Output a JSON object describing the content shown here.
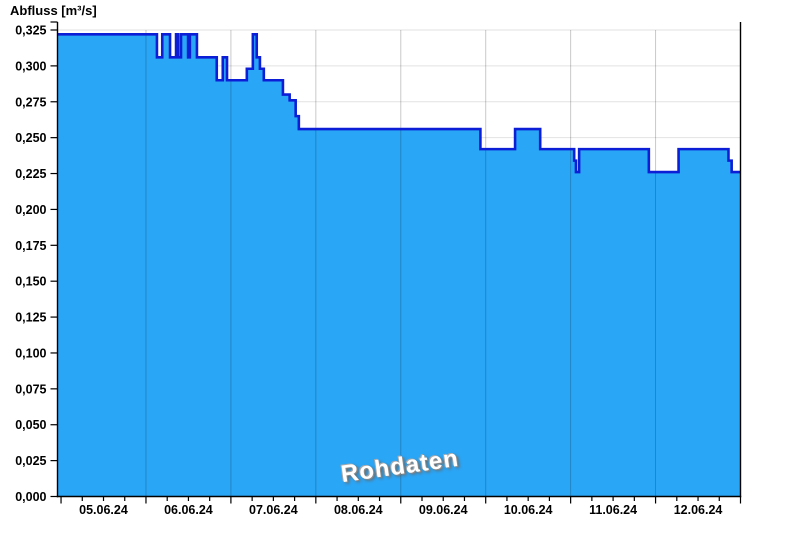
{
  "title": "Abfluss [m³/s]",
  "watermark": "Rohdaten",
  "colors": {
    "background": "#ffffff",
    "fill": "#2aa6f7",
    "line": "#0d1fd6",
    "grid": "#e2e2e2",
    "day_grid": "#c9c9c9",
    "axis": "#000000",
    "label": "#000000",
    "watermark_text": "#ffffff",
    "watermark_shadow": "#6e6e6e"
  },
  "chart_data": {
    "type": "area",
    "subtype": "step",
    "title": "Abfluss [m³/s]",
    "ylabel": "Abfluss [m³/s]",
    "xlabel": "",
    "series_label": "Rohdaten",
    "legend": "none",
    "grid": "horizontal light grey behind fill, vertical day-boundary lines over fill",
    "ylim": [
      0,
      0.325
    ],
    "ytick_step": 0.025,
    "y_tick_labels": [
      "0,000",
      "0,025",
      "0,050",
      "0,075",
      "0,100",
      "0,125",
      "0,150",
      "0,175",
      "0,200",
      "0,225",
      "0,250",
      "0,275",
      "0,300",
      "0,325"
    ],
    "x_tick_labels": [
      "05.06.24",
      "06.06.24",
      "07.06.24",
      "08.06.24",
      "09.06.24",
      "10.06.24",
      "11.06.24",
      "12.06.24"
    ],
    "x_unit": "hours since 05.06.24 00:00",
    "xlim": [
      -1,
      192
    ],
    "x_major_tick_hours": 24,
    "x_minor_tick_hours": 6,
    "steps_format": "[hour_since_05.06_00:00, discharge_m3_per_s] value holds until next breakpoint",
    "steps": [
      [
        -1,
        0.322
      ],
      [
        27.1,
        0.306
      ],
      [
        28.6,
        0.322
      ],
      [
        30.8,
        0.306
      ],
      [
        32.5,
        0.322
      ],
      [
        33.1,
        0.306
      ],
      [
        33.9,
        0.322
      ],
      [
        35.9,
        0.306
      ],
      [
        36.4,
        0.322
      ],
      [
        38.4,
        0.306
      ],
      [
        44,
        0.29
      ],
      [
        45.7,
        0.306
      ],
      [
        46.9,
        0.29
      ],
      [
        52.5,
        0.298
      ],
      [
        54.2,
        0.322
      ],
      [
        55.3,
        0.306
      ],
      [
        56.2,
        0.298
      ],
      [
        57.3,
        0.29
      ],
      [
        62.7,
        0.28
      ],
      [
        64.6,
        0.276
      ],
      [
        66.3,
        0.265
      ],
      [
        67.2,
        0.256
      ],
      [
        118.5,
        0.242
      ],
      [
        128.3,
        0.256
      ],
      [
        135.4,
        0.242
      ],
      [
        145,
        0.234
      ],
      [
        145.5,
        0.226
      ],
      [
        146.4,
        0.242
      ],
      [
        166.1,
        0.226
      ],
      [
        174.5,
        0.242
      ],
      [
        188.6,
        0.234
      ],
      [
        189.5,
        0.226
      ]
    ]
  }
}
